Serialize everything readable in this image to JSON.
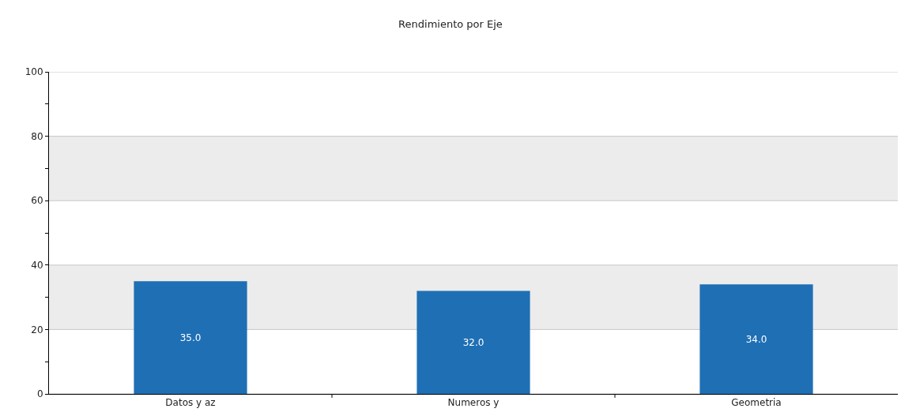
{
  "chart_data": {
    "type": "bar",
    "title": "Rendimiento por Eje",
    "categories": [
      "Datos y az",
      "Numeros y",
      "Geometria"
    ],
    "values": [
      35,
      32,
      34
    ],
    "value_labels": [
      "35.0",
      "32.0",
      "34.0"
    ],
    "color": "#1f6fb5",
    "ylim": [
      0,
      100
    ],
    "yticks": [
      0,
      {
        "value": 10,
        "label": null
      },
      20,
      {
        "value": 30,
        "label": null
      },
      40,
      {
        "value": 50,
        "label": null
      },
      60,
      {
        "value": 70,
        "label": null
      },
      80,
      {
        "value": 90,
        "label": null
      },
      100
    ],
    "grid": "y",
    "bands": [
      {
        "axis": "y",
        "from": 20,
        "to": 40,
        "color": "#ececec"
      },
      {
        "axis": "y",
        "from": 60,
        "to": 80,
        "color": "#ececec"
      }
    ]
  }
}
